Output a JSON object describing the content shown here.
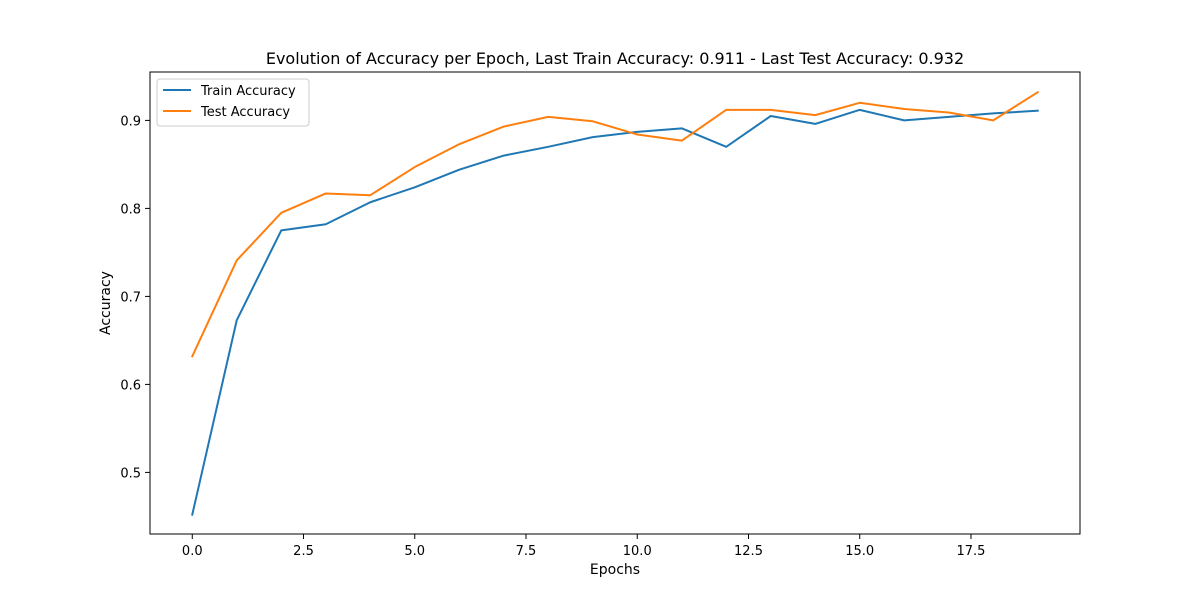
{
  "chart_data": {
    "type": "line",
    "title": "Evolution of Accuracy per Epoch,  Last Train Accuracy: 0.911 - Last Test Accuracy: 0.932",
    "xlabel": "Epochs",
    "ylabel": "Accuracy",
    "xlim": [
      -0.95,
      19.95
    ],
    "ylim": [
      0.43,
      0.955
    ],
    "xticks": [
      0,
      2.5,
      5,
      7.5,
      10,
      12.5,
      15,
      17.5
    ],
    "xtick_labels": [
      "0.0",
      "2.5",
      "5.0",
      "7.5",
      "10.0",
      "12.5",
      "15.0",
      "17.5"
    ],
    "yticks": [
      0.5,
      0.6,
      0.7,
      0.8,
      0.9
    ],
    "ytick_labels": [
      "0.5",
      "0.6",
      "0.7",
      "0.8",
      "0.9"
    ],
    "grid": false,
    "legend_position": "top-left",
    "x": [
      0,
      1,
      2,
      3,
      4,
      5,
      6,
      7,
      8,
      9,
      10,
      11,
      12,
      13,
      14,
      15,
      16,
      17,
      18,
      19
    ],
    "series": [
      {
        "name": "Train Accuracy",
        "color": "#1f77b4",
        "values": [
          0.452,
          0.673,
          0.775,
          0.782,
          0.807,
          0.824,
          0.844,
          0.86,
          0.87,
          0.881,
          0.887,
          0.891,
          0.87,
          0.905,
          0.896,
          0.912,
          0.9,
          0.904,
          0.908,
          0.911
        ]
      },
      {
        "name": "Test Accuracy",
        "color": "#ff7f0e",
        "values": [
          0.632,
          0.741,
          0.795,
          0.817,
          0.815,
          0.847,
          0.873,
          0.893,
          0.904,
          0.899,
          0.884,
          0.877,
          0.912,
          0.912,
          0.906,
          0.92,
          0.913,
          0.909,
          0.9,
          0.932
        ]
      }
    ]
  }
}
